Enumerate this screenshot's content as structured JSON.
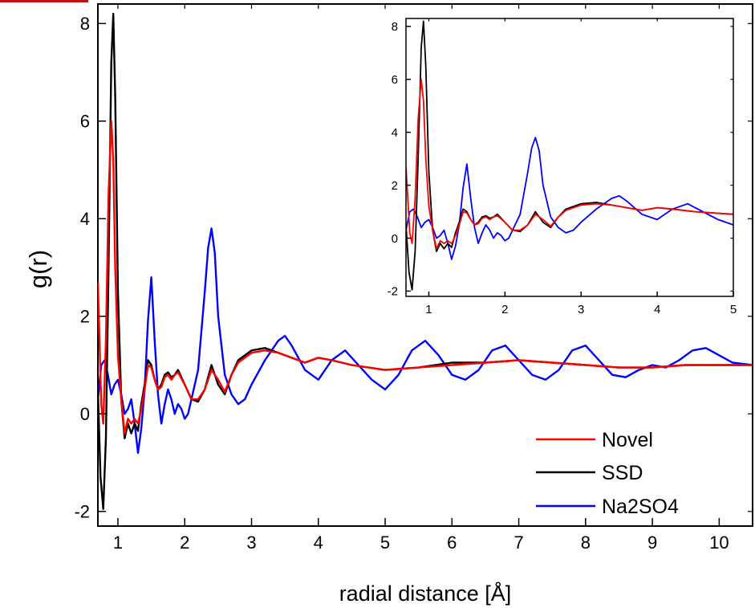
{
  "chart_data": [
    {
      "type": "line",
      "title": "",
      "xlabel": "radial distance [Å]",
      "ylabel": "g(r)",
      "xlim": [
        0.7,
        10.5
      ],
      "ylim": [
        -2.3,
        8.4
      ],
      "xticks": [
        "1",
        "2",
        "3",
        "4",
        "5",
        "6",
        "7",
        "8",
        "9",
        "10"
      ],
      "yticks": [
        "-2",
        "0",
        "2",
        "4",
        "6",
        "8"
      ],
      "grid": false,
      "legend_position": "bottom-right",
      "colors": {
        "Novel": "#ff0000",
        "SSD": "#000000",
        "Na2SO4": "#0000ff"
      },
      "series": [
        {
          "name": "Novel",
          "x": [
            0.7,
            0.75,
            0.78,
            0.82,
            0.86,
            0.9,
            0.93,
            0.96,
            1.0,
            1.05,
            1.1,
            1.15,
            1.2,
            1.25,
            1.3,
            1.35,
            1.4,
            1.45,
            1.5,
            1.55,
            1.6,
            1.65,
            1.7,
            1.75,
            1.8,
            1.85,
            1.9,
            2.0,
            2.1,
            2.2,
            2.3,
            2.4,
            2.5,
            2.6,
            2.7,
            2.8,
            3.0,
            3.2,
            3.4,
            3.6,
            3.8,
            4.0,
            4.2,
            4.5,
            5.0,
            5.5,
            6.0,
            6.5,
            7.0,
            7.5,
            8.0,
            8.5,
            9.0,
            9.5,
            10.0,
            10.5
          ],
          "y": [
            2.7,
            0.2,
            -0.2,
            1.5,
            4.5,
            6.0,
            5.2,
            3.0,
            1.2,
            0.3,
            -0.4,
            -0.1,
            -0.2,
            -0.1,
            -0.2,
            0.1,
            0.5,
            1.0,
            0.95,
            0.7,
            0.5,
            0.55,
            0.75,
            0.8,
            0.7,
            0.8,
            0.85,
            0.6,
            0.3,
            0.3,
            0.5,
            0.9,
            0.7,
            0.45,
            0.8,
            1.05,
            1.25,
            1.3,
            1.25,
            1.15,
            1.05,
            1.15,
            1.1,
            1.0,
            0.9,
            0.95,
            1.0,
            1.05,
            1.1,
            1.05,
            1.0,
            0.95,
            0.95,
            1.0,
            1.0,
            1.0
          ]
        },
        {
          "name": "SSD",
          "x": [
            0.7,
            0.74,
            0.78,
            0.82,
            0.86,
            0.9,
            0.93,
            0.96,
            1.0,
            1.05,
            1.1,
            1.15,
            1.2,
            1.25,
            1.3,
            1.35,
            1.4,
            1.45,
            1.5,
            1.55,
            1.6,
            1.65,
            1.7,
            1.75,
            1.8,
            1.85,
            1.9,
            2.0,
            2.1,
            2.2,
            2.3,
            2.4,
            2.5,
            2.6,
            2.7,
            2.8,
            3.0,
            3.2,
            3.4,
            3.6,
            3.8,
            4.0,
            4.2,
            4.5,
            5.0,
            5.5,
            6.0,
            6.5,
            7.0,
            7.5,
            8.0,
            8.5,
            9.0,
            9.5,
            10.0,
            10.5
          ],
          "y": [
            0.5,
            -1.3,
            -1.95,
            -0.5,
            3.0,
            7.2,
            8.2,
            6.5,
            2.5,
            0.3,
            -0.5,
            -0.2,
            -0.4,
            -0.2,
            -0.35,
            0.2,
            0.6,
            1.1,
            1.0,
            0.7,
            0.5,
            0.6,
            0.8,
            0.85,
            0.75,
            0.8,
            0.9,
            0.6,
            0.3,
            0.25,
            0.5,
            1.0,
            0.6,
            0.4,
            0.8,
            1.1,
            1.3,
            1.35,
            1.25,
            1.15,
            1.05,
            1.15,
            1.1,
            1.0,
            0.9,
            0.95,
            1.05,
            1.05,
            1.1,
            1.05,
            1.0,
            0.95,
            0.95,
            1.0,
            1.0,
            1.0
          ]
        },
        {
          "name": "Na2SO4",
          "x": [
            0.7,
            0.75,
            0.8,
            0.85,
            0.9,
            0.95,
            1.0,
            1.05,
            1.1,
            1.15,
            1.2,
            1.25,
            1.3,
            1.35,
            1.4,
            1.45,
            1.5,
            1.55,
            1.6,
            1.65,
            1.7,
            1.75,
            1.8,
            1.85,
            1.9,
            1.95,
            2.0,
            2.05,
            2.1,
            2.2,
            2.3,
            2.35,
            2.4,
            2.45,
            2.5,
            2.6,
            2.7,
            2.8,
            2.9,
            3.0,
            3.2,
            3.4,
            3.5,
            3.6,
            3.8,
            4.0,
            4.2,
            4.4,
            4.6,
            4.8,
            5.0,
            5.2,
            5.4,
            5.6,
            5.8,
            6.0,
            6.2,
            6.4,
            6.6,
            6.8,
            7.0,
            7.2,
            7.4,
            7.6,
            7.8,
            8.0,
            8.2,
            8.4,
            8.6,
            8.8,
            9.0,
            9.2,
            9.4,
            9.6,
            9.8,
            10.0,
            10.2,
            10.5
          ],
          "y": [
            0.3,
            1.0,
            1.1,
            0.8,
            0.4,
            0.6,
            0.7,
            0.4,
            0.0,
            0.1,
            0.3,
            -0.2,
            -0.8,
            -0.3,
            0.5,
            1.9,
            2.8,
            1.5,
            0.4,
            -0.2,
            0.2,
            0.5,
            0.3,
            0.0,
            0.2,
            0.1,
            -0.1,
            0.0,
            0.3,
            0.9,
            2.5,
            3.4,
            3.8,
            3.3,
            2.0,
            0.8,
            0.4,
            0.2,
            0.3,
            0.6,
            1.1,
            1.5,
            1.6,
            1.4,
            0.9,
            0.7,
            1.1,
            1.3,
            1.0,
            0.7,
            0.5,
            0.8,
            1.3,
            1.5,
            1.2,
            0.8,
            0.7,
            0.9,
            1.3,
            1.4,
            1.1,
            0.8,
            0.7,
            0.9,
            1.3,
            1.4,
            1.1,
            0.8,
            0.75,
            0.9,
            1.0,
            0.95,
            1.1,
            1.3,
            1.35,
            1.2,
            1.05,
            1.0
          ]
        }
      ]
    },
    {
      "type": "line",
      "title": "",
      "xlabel": "",
      "ylabel": "",
      "xlim": [
        0.7,
        5.0
      ],
      "ylim": [
        -2.2,
        8.3
      ],
      "xticks": [
        "1",
        "2",
        "3",
        "4",
        "5"
      ],
      "yticks": [
        "-2",
        "0",
        "2",
        "4",
        "6",
        "8"
      ],
      "grid": false,
      "position": "inset, top-right",
      "series_ref": "same data as main plot (Novel, SSD, Na2SO4)"
    }
  ]
}
